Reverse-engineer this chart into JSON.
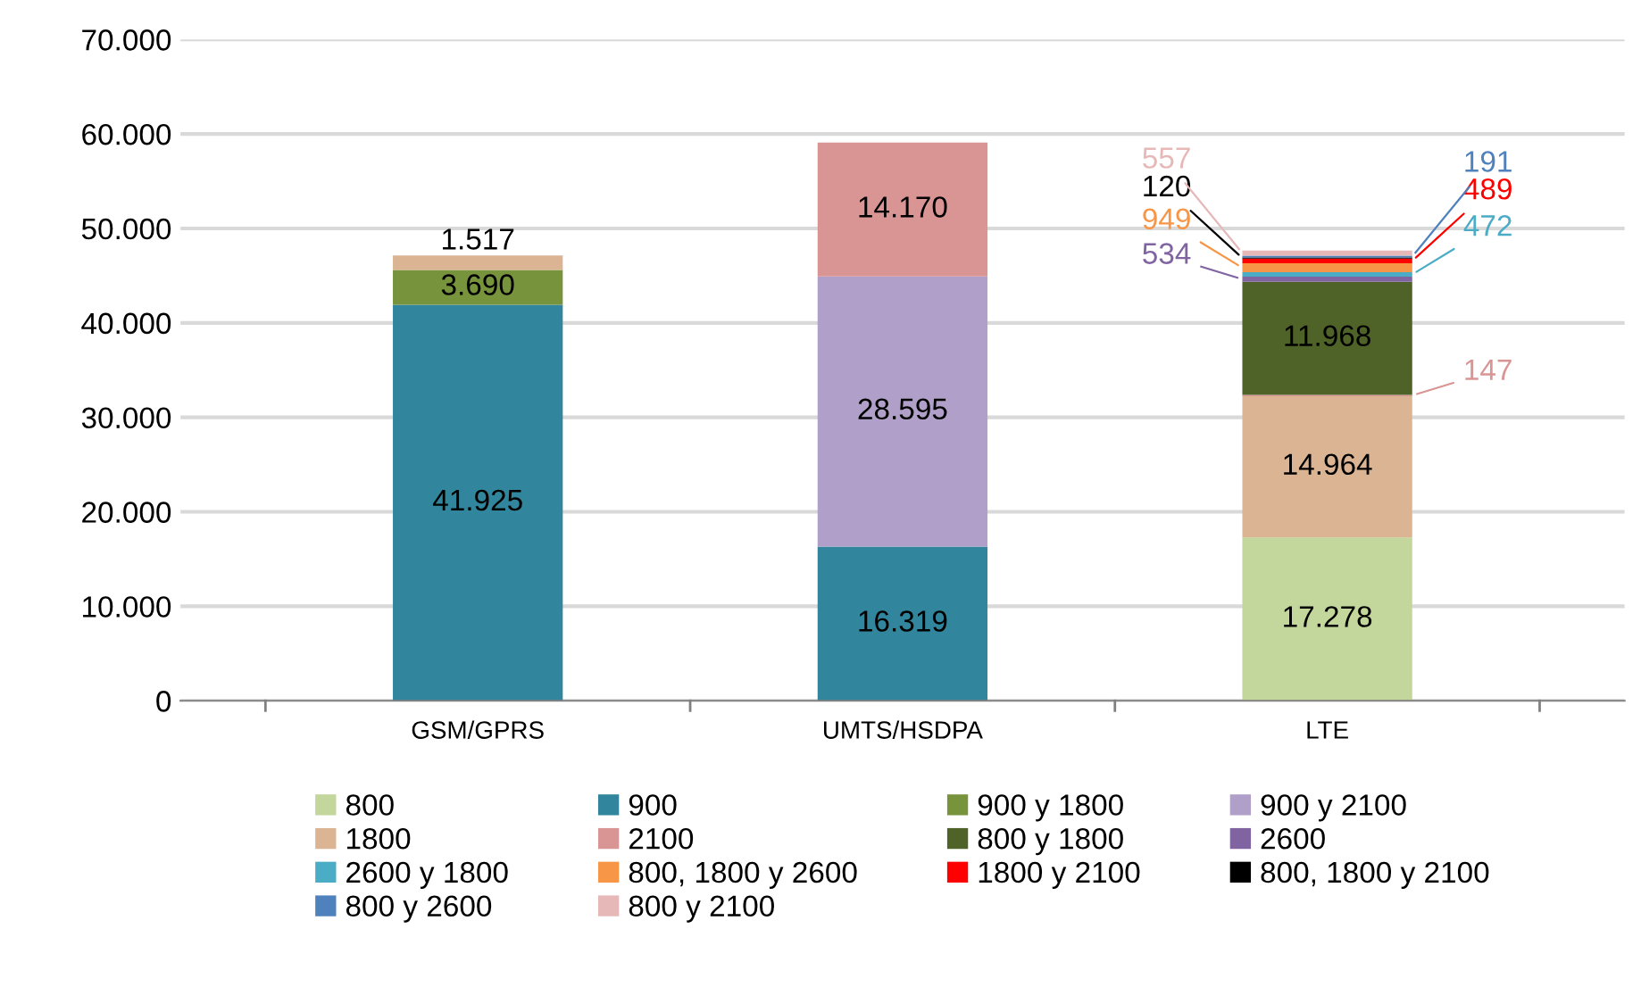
{
  "chart_data": {
    "type": "bar",
    "stacked": true,
    "categories": [
      "GSM/GPRS",
      "UMTS/HSDPA",
      "LTE"
    ],
    "series": [
      {
        "name": "800",
        "color": "#c3d69b",
        "values": [
          null,
          null,
          17278
        ],
        "value_labels": [
          null,
          null,
          "17.278"
        ]
      },
      {
        "name": "900",
        "color": "#31859c",
        "values": [
          41925,
          16319,
          null
        ],
        "value_labels": [
          "41.925",
          "16.319",
          null
        ]
      },
      {
        "name": "900 y 1800",
        "color": "#77933c",
        "values": [
          3690,
          null,
          null
        ],
        "value_labels": [
          "3.690",
          null,
          null
        ]
      },
      {
        "name": "900 y 2100",
        "color": "#b09fc8",
        "values": [
          null,
          28595,
          null
        ],
        "value_labels": [
          null,
          "28.595",
          null
        ]
      },
      {
        "name": "1800",
        "color": "#dbb593",
        "values": [
          1517,
          null,
          14964
        ],
        "value_labels": [
          "1.517",
          null,
          "14.964"
        ]
      },
      {
        "name": "2100",
        "color": "#d99594",
        "values": [
          null,
          14170,
          147
        ],
        "value_labels": [
          null,
          "14.170",
          "147"
        ]
      },
      {
        "name": "800 y 1800",
        "color": "#4f6228",
        "values": [
          null,
          null,
          11968
        ],
        "value_labels": [
          null,
          null,
          "11.968"
        ]
      },
      {
        "name": "2600",
        "color": "#8064a2",
        "values": [
          null,
          null,
          534
        ],
        "value_labels": [
          null,
          null,
          "534"
        ]
      },
      {
        "name": "2600 y 1800",
        "color": "#4bacc6",
        "values": [
          null,
          null,
          472
        ],
        "value_labels": [
          null,
          null,
          "472"
        ]
      },
      {
        "name": "800, 1800 y 2600",
        "color": "#f79646",
        "values": [
          null,
          null,
          949
        ],
        "value_labels": [
          null,
          null,
          "949"
        ]
      },
      {
        "name": "1800 y 2100",
        "color": "#ff0000",
        "values": [
          null,
          null,
          489
        ],
        "value_labels": [
          null,
          null,
          "489"
        ]
      },
      {
        "name": "800, 1800 y 2100",
        "color": "#000000",
        "values": [
          null,
          null,
          120
        ],
        "value_labels": [
          null,
          null,
          "120"
        ]
      },
      {
        "name": "800 y 2600",
        "color": "#4f81bd",
        "values": [
          null,
          null,
          191
        ],
        "value_labels": [
          null,
          null,
          "191"
        ]
      },
      {
        "name": "800 y 2100",
        "color": "#e6b9b8",
        "values": [
          null,
          null,
          557
        ],
        "value_labels": [
          null,
          null,
          "557"
        ]
      }
    ],
    "ylim": [
      0,
      70000
    ],
    "yticks": [
      {
        "value": 0,
        "label": "0"
      },
      {
        "value": 10000,
        "label": "10.000"
      },
      {
        "value": 20000,
        "label": "20.000"
      },
      {
        "value": 30000,
        "label": "30.000"
      },
      {
        "value": 40000,
        "label": "40.000"
      },
      {
        "value": 50000,
        "label": "50.000"
      },
      {
        "value": 60000,
        "label": "60.000"
      },
      {
        "value": 70000,
        "label": "70.000"
      }
    ],
    "grid": "y",
    "legend": "bottom"
  }
}
